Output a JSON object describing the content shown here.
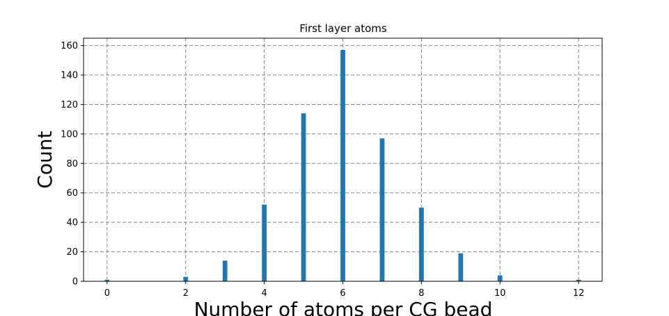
{
  "chart_data": {
    "type": "bar",
    "title": "First layer atoms",
    "xlabel": "Number of atoms per CG bead",
    "ylabel": "Count",
    "x": [
      0,
      2,
      3,
      4,
      5,
      6,
      7,
      8,
      9,
      10,
      12
    ],
    "values": [
      1,
      3,
      14,
      52,
      114,
      157,
      97,
      50,
      19,
      4,
      1
    ],
    "xlim": [
      -0.6,
      12.6
    ],
    "ylim": [
      0,
      165
    ],
    "xticks": [
      "0",
      "2",
      "4",
      "6",
      "8",
      "10",
      "12"
    ],
    "yticks": [
      "0",
      "20",
      "40",
      "60",
      "80",
      "100",
      "120",
      "140",
      "160"
    ],
    "grid": true,
    "bar_color": "#1f77b4",
    "grid_color": "#808080"
  }
}
